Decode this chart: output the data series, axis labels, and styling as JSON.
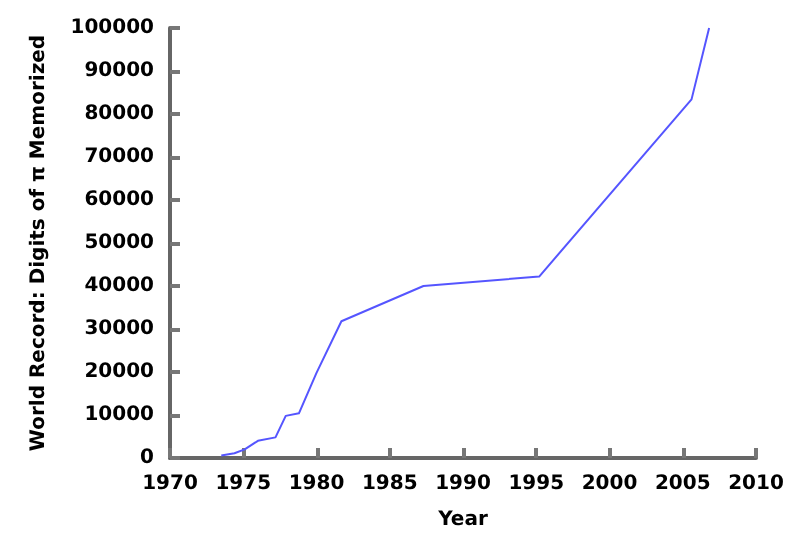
{
  "chart_data": {
    "type": "line",
    "xlabel": "Year",
    "ylabel": "World Record: Digits of π Memorized",
    "x": [
      1973.5,
      1974.4,
      1975.1,
      1976,
      1977.2,
      1977.9,
      1978.8,
      1980,
      1981.7,
      1987.3,
      1995.2,
      2005.6,
      2006.8
    ],
    "series": [
      {
        "color": "#5555ff",
        "values": [
          600,
          1100,
          2000,
          4000,
          4800,
          9800,
          10400,
          19800,
          31800,
          40000,
          42200,
          83400,
          100000
        ]
      }
    ],
    "xlim": [
      1970,
      2010
    ],
    "xticks": [
      1970,
      1975,
      1980,
      1985,
      1990,
      1995,
      2000,
      2005,
      2010
    ],
    "ylim": [
      0,
      100000
    ],
    "yticks": [
      0,
      10000,
      20000,
      30000,
      40000,
      50000,
      60000,
      70000,
      80000,
      90000,
      100000
    ],
    "grid": false,
    "marker": "none",
    "line_style": "solid"
  }
}
